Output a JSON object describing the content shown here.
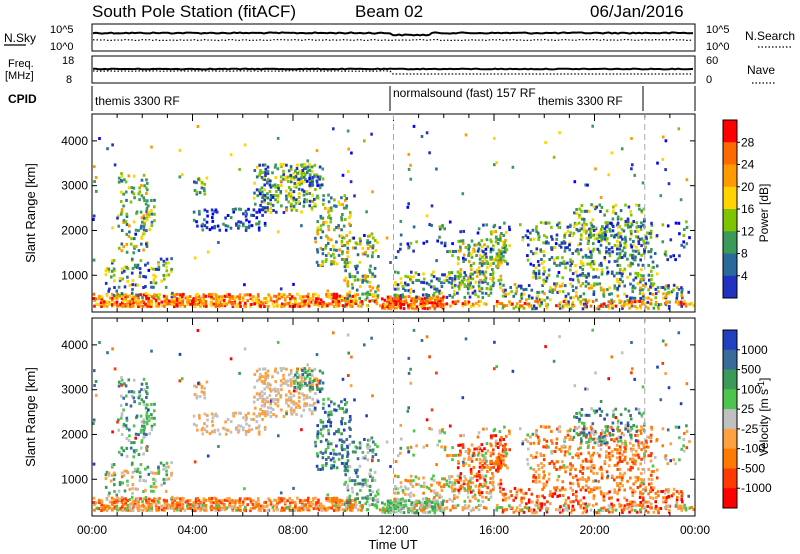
{
  "header": {
    "title": "South Pole Station (fitACF)",
    "beam": "Beam 02",
    "date": "06/Jan/2016"
  },
  "top_panels": {
    "nsky_label": "N.Sky",
    "nsky_ticks": [
      "10^5",
      "10^0"
    ],
    "nsearch_label": "N.Search",
    "nsearch_ticks": [
      "10^5",
      "10^0"
    ],
    "freq_label_1": "Freq.",
    "freq_label_2": "[MHz]",
    "freq_ticks": [
      "18",
      "8"
    ],
    "nave_label": "Nave",
    "nave_ticks": [
      "60",
      "0"
    ],
    "cpid_label": "CPID",
    "cpid_segments": [
      "themis 3300 RF",
      "normalsound (fast) 157 RF",
      "themis 3300 RF"
    ]
  },
  "chart_data": [
    {
      "type": "heatmap",
      "title": "",
      "ylabel": "Slant Range [km]",
      "xlabel": "",
      "ylim": [
        180,
        4600
      ],
      "y_ticks": [
        "1000",
        "2000",
        "3000",
        "4000"
      ],
      "x_ticks": [
        "00:00",
        "04:00",
        "08:00",
        "12:00",
        "16:00",
        "20:00",
        "00:00"
      ],
      "colorbar": {
        "label": "Power [dB]",
        "ticks": [
          "28",
          "24",
          "20",
          "16",
          "12",
          "8",
          "4"
        ],
        "colors": [
          "#ff0000",
          "#ff6a00",
          "#ff9a00",
          "#ffd400",
          "#7fc400",
          "#3a9a5a",
          "#2a6a9a",
          "#2030c0",
          "#0000ff"
        ]
      },
      "dominant_color": "ground scatter near 300-500 km, patches up to 3500 km"
    },
    {
      "type": "heatmap",
      "title": "",
      "ylabel": "Slant Range [km]",
      "xlabel": "Time UT",
      "ylim": [
        180,
        4600
      ],
      "y_ticks": [
        "1000",
        "2000",
        "3000",
        "4000"
      ],
      "x_ticks": [
        "00:00",
        "04:00",
        "08:00",
        "12:00",
        "16:00",
        "20:00",
        "00:00"
      ],
      "colorbar": {
        "label": "Velocity [m s",
        "label_sup": "-1",
        "label_end": "]",
        "ticks": [
          "1000",
          "500",
          "100",
          "25",
          "-25",
          "-100",
          "-500",
          "-1000"
        ],
        "colors": [
          "#2040c0",
          "#3a6a9a",
          "#3a9a5a",
          "#4dc44d",
          "#c0c0c0",
          "#ffa040",
          "#ff7a00",
          "#ff3a00",
          "#ff0000"
        ]
      }
    }
  ]
}
